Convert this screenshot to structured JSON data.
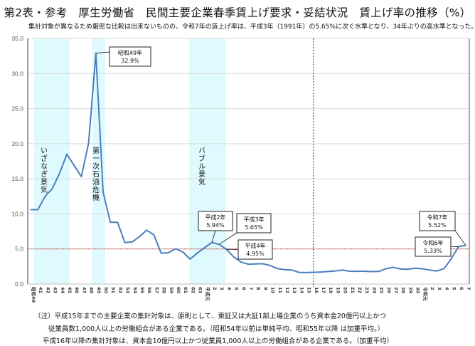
{
  "title": "第2表・参考　厚生労働省　民間主要企業春季賃上げ要求・妥結状況　賃上げ率の推移（%）",
  "subtitle": "集計対象が異なるため厳密な比較は出来ないものの、令和7年の賃上げ率は、平成3年（1991年）の5.65%に次ぐ水準となり、34年ぶりの高水準となった。",
  "colors": {
    "line": "#4a7ebb",
    "band": "#dffaff",
    "ref_line": "#c00000"
  },
  "chart_data": {
    "type": "line",
    "title": "賃上げ率の推移（%）",
    "ylim": [
      0,
      35
    ],
    "yticks": [
      "0.0",
      "5.0",
      "10.0",
      "15.0",
      "20.0",
      "25.0",
      "30.0",
      "35.0"
    ],
    "grid": true,
    "reference_line": 5.0,
    "x": [
      "昭和40",
      "41",
      "42",
      "43",
      "44",
      "45",
      "46",
      "47",
      "48",
      "49",
      "50",
      "51",
      "52",
      "53",
      "54",
      "55",
      "56",
      "57",
      "58",
      "59",
      "60",
      "61",
      "62",
      "63",
      "平成元",
      "2",
      "3",
      "4",
      "5",
      "6",
      "7",
      "8",
      "9",
      "10",
      "11",
      "12",
      "13",
      "14",
      "15",
      "16",
      "17",
      "18",
      "19",
      "20",
      "21",
      "22",
      "23",
      "24",
      "25",
      "26",
      "27",
      "28",
      "29",
      "30",
      "令和元",
      "2",
      "3",
      "4",
      "5",
      "6",
      "7"
    ],
    "values": [
      10.6,
      10.6,
      12.5,
      13.6,
      15.8,
      18.5,
      16.9,
      15.3,
      20.1,
      32.9,
      13.1,
      8.8,
      8.8,
      5.9,
      6.0,
      6.74,
      7.68,
      7.01,
      4.4,
      4.46,
      5.03,
      4.55,
      3.56,
      4.43,
      5.17,
      5.94,
      5.65,
      4.95,
      3.89,
      3.13,
      2.83,
      2.86,
      2.9,
      2.66,
      2.21,
      2.06,
      2.01,
      1.66,
      1.63,
      1.67,
      1.71,
      1.79,
      1.87,
      1.99,
      1.83,
      1.82,
      1.83,
      1.78,
      1.8,
      2.19,
      2.38,
      2.14,
      2.11,
      2.26,
      2.18,
      2.0,
      1.86,
      2.2,
      3.6,
      5.33,
      5.52
    ],
    "shaded_periods": [
      {
        "label": "いざなぎ景気",
        "from_index": 0.5,
        "to_index": 5.4
      },
      {
        "label": "第一次石油危機",
        "from_index": 8.5,
        "to_index": 10.3
      },
      {
        "label": "バブル景気",
        "from_index": 21.9,
        "to_index": 26.9
      }
    ],
    "divider_index": 39,
    "annotations": [
      {
        "index": 9,
        "line1": "昭和49年",
        "line2": "32.9%"
      },
      {
        "index": 25,
        "line1": "平成2年",
        "line2": "5.94%"
      },
      {
        "index": 26,
        "line1": "平成3年",
        "line2": "5.65%"
      },
      {
        "index": 27,
        "line1": "平成4年",
        "line2": "4.95%"
      },
      {
        "index": 59,
        "line1": "令和6年",
        "line2": "5.33%"
      },
      {
        "index": 60,
        "line1": "令和7年",
        "line2": "5.52%"
      }
    ]
  },
  "notes": [
    "（注）平成15年までの主要企業の集計対象は、原則として、東証又は大証1部上場企業のうち資本金20億円以上かつ",
    "従業員数1,000人以上の労働組合がある企業である。（昭和54年以前は単純平均、昭和55年以降 は加重平均。）",
    "平成16年以降の集計対象は、資本金10億円以上かつ従業員1,000人以上の労働組合がある企業である。（加重平均）"
  ]
}
